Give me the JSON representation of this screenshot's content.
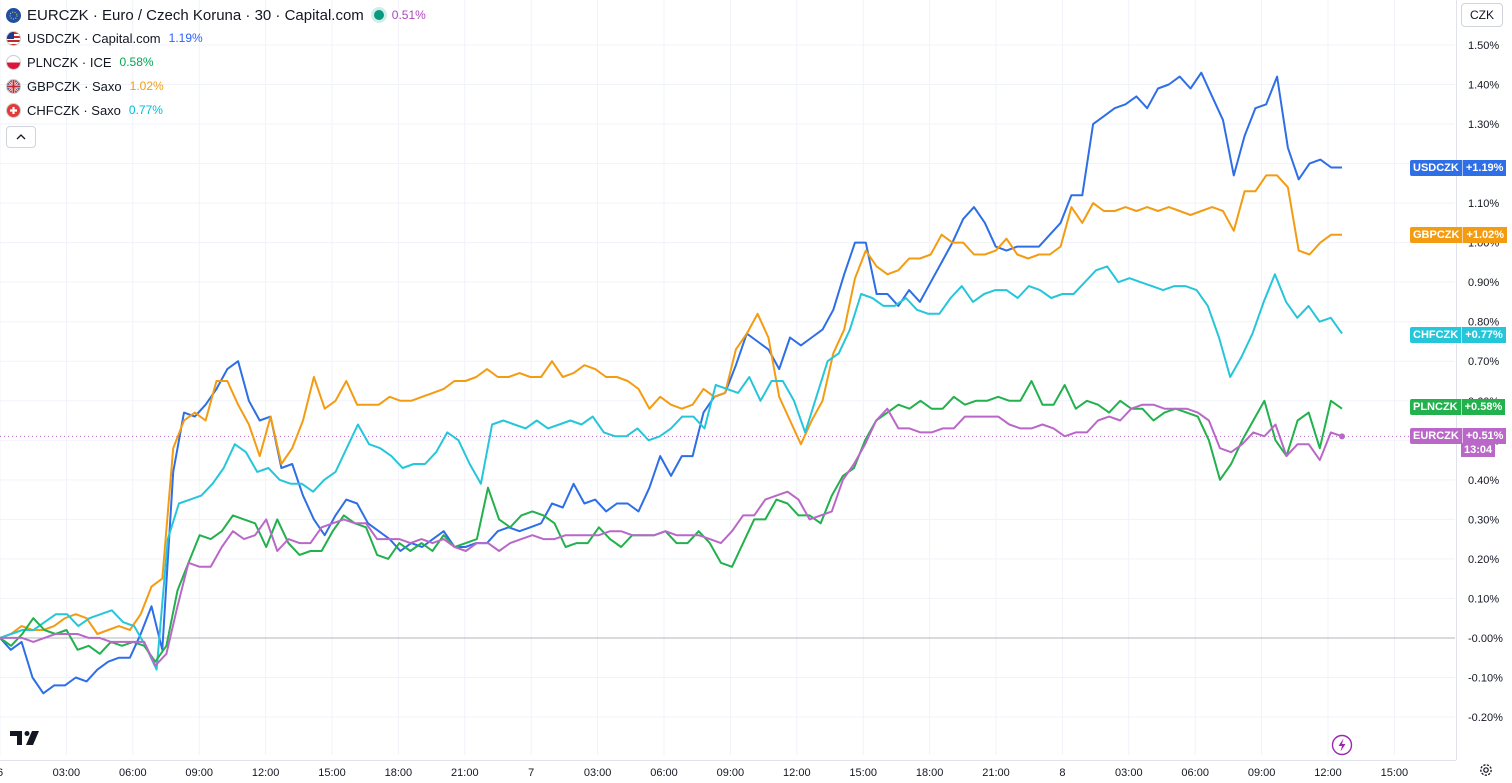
{
  "legend": {
    "main": {
      "label": "EURCZK · Euro / Czech Koruna · 30 · Capital.com",
      "value": "0.51%",
      "color": "#ab47bc"
    },
    "items": [
      {
        "label": "USDCZK · Capital.com",
        "value": "1.19%",
        "color": "#2962ff",
        "flag": "us-flag-icon"
      },
      {
        "label": "PLNCZK · ICE",
        "value": "0.58%",
        "color": "#00b050",
        "flag": "pl-flag-icon"
      },
      {
        "label": "GBPCZK · Saxo",
        "value": "1.02%",
        "color": "#f39c12",
        "flag": "gb-flag-icon"
      },
      {
        "label": "CHFCZK · Saxo",
        "value": "0.77%",
        "color": "#00bcd4",
        "flag": "ch-flag-icon"
      }
    ]
  },
  "currency_button": "CZK",
  "price_tags": [
    {
      "symbol": "USDCZK",
      "value": "+1.19%",
      "color": "#2e6ee6"
    },
    {
      "symbol": "GBPCZK",
      "value": "+1.02%",
      "color": "#f39c12"
    },
    {
      "symbol": "CHFCZK",
      "value": "+0.77%",
      "color": "#26c6da"
    },
    {
      "symbol": "PLNCZK",
      "value": "+0.58%",
      "color": "#22b14c"
    },
    {
      "symbol": "EURCZK",
      "value": "+0.51%",
      "color": "#ba68c8",
      "extra": "13:04"
    }
  ],
  "chart_data": {
    "type": "line",
    "y_unit": "%",
    "ylim": [
      -0.2,
      1.5
    ],
    "y_ticks": [
      "1.50%",
      "1.40%",
      "1.30%",
      "1.20%",
      "1.10%",
      "1.00%",
      "0.90%",
      "0.80%",
      "0.70%",
      "0.60%",
      "0.50%",
      "0.40%",
      "0.30%",
      "0.20%",
      "0.10%",
      "-0.00%",
      "-0.10%",
      "-0.20%"
    ],
    "x_ticks": [
      "6",
      "03:00",
      "06:00",
      "09:00",
      "12:00",
      "15:00",
      "18:00",
      "21:00",
      "7",
      "03:00",
      "06:00",
      "09:00",
      "12:00",
      "15:00",
      "18:00",
      "21:00",
      "8",
      "03:00",
      "06:00",
      "09:00",
      "12:00",
      "15:00"
    ],
    "grid": true,
    "baseline": 0,
    "series": [
      {
        "name": "USDCZK",
        "color": "#2e6ee6",
        "values": [
          0,
          -0.03,
          -0.01,
          -0.1,
          -0.14,
          -0.12,
          -0.12,
          -0.1,
          -0.11,
          -0.08,
          -0.06,
          -0.05,
          -0.05,
          0.01,
          0.08,
          -0.03,
          0.42,
          0.57,
          0.56,
          0.59,
          0.63,
          0.68,
          0.7,
          0.6,
          0.55,
          0.56,
          0.43,
          0.44,
          0.36,
          0.3,
          0.26,
          0.31,
          0.35,
          0.34,
          0.29,
          0.27,
          0.25,
          0.22,
          0.24,
          0.23,
          0.25,
          0.27,
          0.23,
          0.23,
          0.24,
          0.24,
          0.27,
          0.28,
          0.27,
          0.28,
          0.29,
          0.34,
          0.33,
          0.39,
          0.34,
          0.35,
          0.32,
          0.34,
          0.34,
          0.32,
          0.38,
          0.46,
          0.41,
          0.46,
          0.46,
          0.57,
          0.61,
          0.62,
          0.69,
          0.77,
          0.75,
          0.73,
          0.68,
          0.76,
          0.74,
          0.76,
          0.78,
          0.83,
          0.92,
          1.0,
          1.0,
          0.87,
          0.87,
          0.84,
          0.88,
          0.85,
          0.9,
          0.95,
          1.0,
          1.06,
          1.09,
          1.05,
          0.99,
          0.98,
          0.99,
          0.99,
          0.99,
          1.02,
          1.05,
          1.12,
          1.12,
          1.3,
          1.32,
          1.34,
          1.35,
          1.37,
          1.34,
          1.39,
          1.4,
          1.42,
          1.39,
          1.43,
          1.37,
          1.31,
          1.17,
          1.27,
          1.34,
          1.35,
          1.42,
          1.24,
          1.16,
          1.2,
          1.21,
          1.19,
          1.19
        ]
      },
      {
        "name": "GBPCZK",
        "color": "#f39c12",
        "values": [
          0,
          0.01,
          0.03,
          0.02,
          0.02,
          0.03,
          0.05,
          0.06,
          0.05,
          0.01,
          0.02,
          0.03,
          0.02,
          0.06,
          0.13,
          0.15,
          0.48,
          0.55,
          0.57,
          0.55,
          0.65,
          0.65,
          0.59,
          0.54,
          0.46,
          0.56,
          0.44,
          0.48,
          0.55,
          0.66,
          0.58,
          0.6,
          0.65,
          0.59,
          0.59,
          0.59,
          0.61,
          0.6,
          0.6,
          0.61,
          0.62,
          0.63,
          0.65,
          0.65,
          0.66,
          0.68,
          0.66,
          0.66,
          0.67,
          0.66,
          0.66,
          0.7,
          0.66,
          0.67,
          0.69,
          0.68,
          0.66,
          0.66,
          0.65,
          0.63,
          0.58,
          0.61,
          0.59,
          0.58,
          0.59,
          0.63,
          0.61,
          0.62,
          0.73,
          0.77,
          0.82,
          0.76,
          0.61,
          0.55,
          0.49,
          0.55,
          0.6,
          0.72,
          0.78,
          0.91,
          0.98,
          0.94,
          0.92,
          0.93,
          0.96,
          0.96,
          0.97,
          1.02,
          1.0,
          1.0,
          0.97,
          0.97,
          0.98,
          1.01,
          0.97,
          0.96,
          0.97,
          0.97,
          0.99,
          1.09,
          1.05,
          1.1,
          1.08,
          1.08,
          1.09,
          1.08,
          1.09,
          1.08,
          1.09,
          1.08,
          1.07,
          1.08,
          1.09,
          1.08,
          1.03,
          1.13,
          1.13,
          1.17,
          1.17,
          1.14,
          0.98,
          0.97,
          1.0,
          1.02,
          1.02
        ]
      },
      {
        "name": "CHFCZK",
        "color": "#26c6da",
        "values": [
          0,
          0.01,
          0.02,
          0.02,
          0.04,
          0.06,
          0.06,
          0.03,
          0.05,
          0.06,
          0.07,
          0.04,
          0.03,
          -0.02,
          -0.08,
          0.25,
          0.34,
          0.35,
          0.36,
          0.39,
          0.43,
          0.49,
          0.47,
          0.42,
          0.43,
          0.4,
          0.39,
          0.39,
          0.37,
          0.4,
          0.42,
          0.48,
          0.54,
          0.49,
          0.48,
          0.46,
          0.43,
          0.44,
          0.44,
          0.47,
          0.52,
          0.5,
          0.44,
          0.39,
          0.54,
          0.55,
          0.54,
          0.53,
          0.55,
          0.53,
          0.54,
          0.55,
          0.54,
          0.56,
          0.52,
          0.51,
          0.51,
          0.53,
          0.5,
          0.51,
          0.53,
          0.56,
          0.56,
          0.53,
          0.64,
          0.63,
          0.62,
          0.66,
          0.6,
          0.65,
          0.65,
          0.6,
          0.52,
          0.61,
          0.7,
          0.72,
          0.78,
          0.87,
          0.86,
          0.84,
          0.84,
          0.86,
          0.83,
          0.82,
          0.82,
          0.86,
          0.89,
          0.85,
          0.87,
          0.88,
          0.88,
          0.86,
          0.89,
          0.88,
          0.86,
          0.87,
          0.87,
          0.9,
          0.93,
          0.94,
          0.9,
          0.91,
          0.9,
          0.89,
          0.88,
          0.89,
          0.89,
          0.88,
          0.84,
          0.76,
          0.66,
          0.71,
          0.77,
          0.85,
          0.92,
          0.85,
          0.81,
          0.84,
          0.8,
          0.81,
          0.77
        ]
      },
      {
        "name": "PLNCZK",
        "color": "#22b14c",
        "values": [
          0,
          -0.02,
          0.01,
          0.05,
          0.02,
          0.01,
          0.02,
          -0.03,
          -0.02,
          -0.04,
          -0.01,
          -0.02,
          -0.01,
          -0.02,
          -0.06,
          -0.02,
          0.12,
          0.19,
          0.26,
          0.25,
          0.27,
          0.31,
          0.3,
          0.29,
          0.23,
          0.3,
          0.24,
          0.21,
          0.22,
          0.22,
          0.27,
          0.31,
          0.29,
          0.28,
          0.21,
          0.2,
          0.24,
          0.22,
          0.24,
          0.22,
          0.26,
          0.23,
          0.24,
          0.25,
          0.38,
          0.3,
          0.28,
          0.31,
          0.32,
          0.31,
          0.29,
          0.23,
          0.24,
          0.24,
          0.28,
          0.25,
          0.23,
          0.26,
          0.26,
          0.26,
          0.27,
          0.24,
          0.24,
          0.27,
          0.24,
          0.19,
          0.18,
          0.24,
          0.3,
          0.3,
          0.35,
          0.34,
          0.31,
          0.31,
          0.29,
          0.36,
          0.41,
          0.43,
          0.5,
          0.55,
          0.57,
          0.59,
          0.58,
          0.6,
          0.58,
          0.58,
          0.61,
          0.59,
          0.6,
          0.6,
          0.61,
          0.6,
          0.6,
          0.65,
          0.59,
          0.59,
          0.64,
          0.58,
          0.6,
          0.59,
          0.57,
          0.6,
          0.58,
          0.58,
          0.55,
          0.57,
          0.58,
          0.57,
          0.56,
          0.5,
          0.4,
          0.44,
          0.5,
          0.55,
          0.6,
          0.5,
          0.46,
          0.55,
          0.57,
          0.48,
          0.6,
          0.58
        ]
      },
      {
        "name": "EURCZK",
        "color": "#ba68c8",
        "values": [
          0,
          0.0,
          0.0,
          -0.01,
          0.0,
          0.01,
          0.01,
          0.01,
          0.0,
          0.0,
          -0.01,
          -0.01,
          -0.01,
          -0.01,
          -0.07,
          -0.04,
          0.08,
          0.19,
          0.18,
          0.18,
          0.23,
          0.27,
          0.25,
          0.26,
          0.3,
          0.22,
          0.25,
          0.24,
          0.24,
          0.28,
          0.29,
          0.3,
          0.29,
          0.29,
          0.25,
          0.25,
          0.25,
          0.24,
          0.25,
          0.24,
          0.25,
          0.23,
          0.22,
          0.24,
          0.24,
          0.22,
          0.24,
          0.25,
          0.26,
          0.25,
          0.25,
          0.26,
          0.26,
          0.26,
          0.26,
          0.27,
          0.27,
          0.26,
          0.26,
          0.26,
          0.27,
          0.26,
          0.26,
          0.26,
          0.25,
          0.24,
          0.27,
          0.31,
          0.31,
          0.35,
          0.36,
          0.37,
          0.35,
          0.3,
          0.31,
          0.32,
          0.4,
          0.44,
          0.49,
          0.55,
          0.58,
          0.53,
          0.53,
          0.52,
          0.52,
          0.53,
          0.53,
          0.56,
          0.56,
          0.56,
          0.56,
          0.54,
          0.53,
          0.53,
          0.54,
          0.53,
          0.51,
          0.52,
          0.52,
          0.55,
          0.56,
          0.55,
          0.58,
          0.59,
          0.59,
          0.58,
          0.58,
          0.58,
          0.57,
          0.55,
          0.48,
          0.47,
          0.49,
          0.52,
          0.51,
          0.54,
          0.46,
          0.49,
          0.49,
          0.45,
          0.52,
          0.51
        ]
      }
    ],
    "current_line": 0.51
  }
}
